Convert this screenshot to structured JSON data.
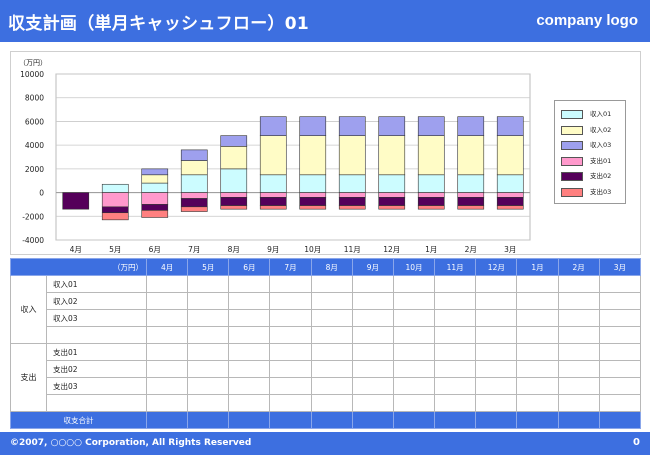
{
  "header": {
    "title": "収支計画（単月キャッシュフロー）01",
    "logo": "company logo"
  },
  "colors": {
    "accent": "#3d6fe0",
    "income01": "#ccfcff",
    "income02": "#fffcc6",
    "income03": "#9ea0ee",
    "expense01": "#ff99cc",
    "expense02": "#55005a",
    "expense03": "#ff8080"
  },
  "chart_data": {
    "type": "bar",
    "stacked": true,
    "unit_label": "（万円）",
    "categories": [
      "4月",
      "5月",
      "6月",
      "7月",
      "8月",
      "9月",
      "10月",
      "11月",
      "12月",
      "1月",
      "2月",
      "3月"
    ],
    "ylim": [
      -4000,
      10000
    ],
    "yticks": [
      10000,
      8000,
      6000,
      4000,
      2000,
      0,
      -2000,
      -4000
    ],
    "grid": true,
    "legend": "right",
    "series": [
      {
        "name": "収入01",
        "color": "#ccfcff",
        "values": [
          0,
          700,
          800,
          1500,
          2000,
          1500,
          1500,
          1500,
          1500,
          1500,
          1500,
          1500
        ]
      },
      {
        "name": "収入02",
        "color": "#fffcc6",
        "values": [
          0,
          0,
          700,
          1200,
          1900,
          3300,
          3300,
          3300,
          3300,
          3300,
          3300,
          3300
        ]
      },
      {
        "name": "収入03",
        "color": "#9ea0ee",
        "values": [
          0,
          0,
          500,
          900,
          900,
          1600,
          1600,
          1600,
          1600,
          1600,
          1600,
          1600
        ]
      },
      {
        "name": "支出01",
        "color": "#ff99cc",
        "values": [
          0,
          -1200,
          -1000,
          -500,
          -400,
          -400,
          -400,
          -400,
          -400,
          -400,
          -400,
          -400
        ]
      },
      {
        "name": "支出02",
        "color": "#55005a",
        "values": [
          -1400,
          -500,
          -500,
          -700,
          -700,
          -700,
          -700,
          -700,
          -700,
          -700,
          -700,
          -700
        ]
      },
      {
        "name": "支出03",
        "color": "#ff8080",
        "values": [
          0,
          -600,
          -600,
          -400,
          -300,
          -300,
          -300,
          -300,
          -300,
          -300,
          -300,
          -300
        ]
      }
    ]
  },
  "table": {
    "unit": "（万円）",
    "months": [
      "4月",
      "5月",
      "6月",
      "7月",
      "8月",
      "9月",
      "10月",
      "11月",
      "12月",
      "1月",
      "2月",
      "3月"
    ],
    "groups": [
      {
        "label": "収入",
        "items": [
          "収入01",
          "収入02",
          "収入03"
        ]
      },
      {
        "label": "支出",
        "items": [
          "支出01",
          "支出02",
          "支出03"
        ]
      }
    ],
    "total_label": "収支合計"
  },
  "footer": {
    "copyright": "©2007, ○○○○ Corporation, All Rights Reserved",
    "page": "0"
  }
}
